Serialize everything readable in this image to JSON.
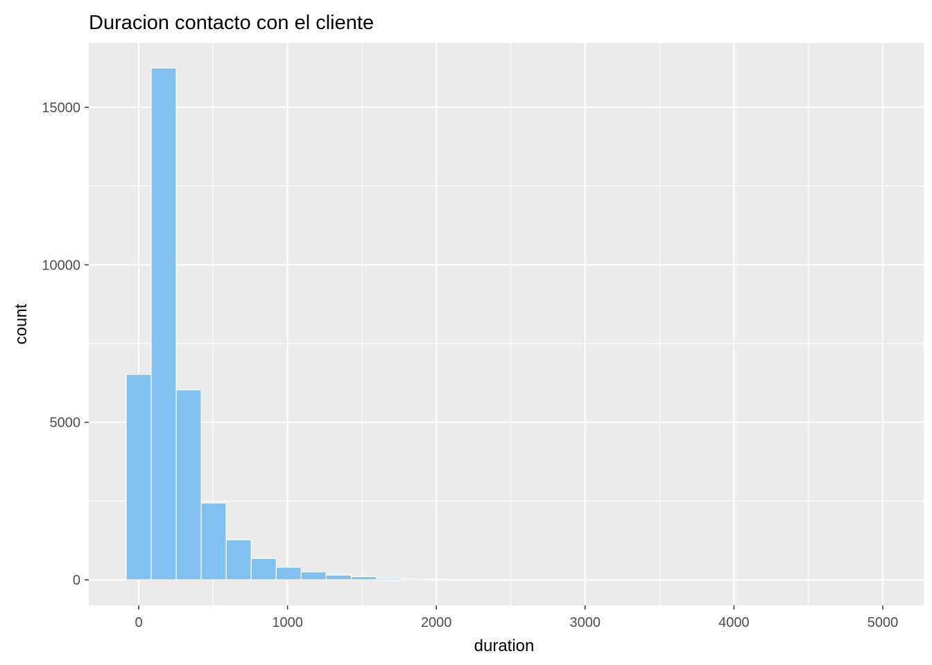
{
  "chart_data": {
    "type": "bar",
    "title": "Duracion contacto con el cliente",
    "xlabel": "duration",
    "ylabel": "count",
    "xlim": [
      -90,
      5000
    ],
    "ylim": [
      0,
      16300
    ],
    "x_ticks": [
      0,
      1000,
      2000,
      3000,
      4000,
      5000
    ],
    "y_ticks": [
      0,
      5000,
      10000,
      15000
    ],
    "bin_width": 168,
    "bin_starts": [
      -84,
      84,
      252,
      420,
      588,
      756,
      924,
      1092,
      1260,
      1428,
      1596,
      1764,
      1932,
      2100,
      2268,
      2436,
      2604,
      2772,
      2940,
      3108,
      3276,
      3444,
      3612,
      3780,
      3948,
      4116,
      4284,
      4452,
      4620,
      4788
    ],
    "values": [
      6520,
      16250,
      6030,
      2440,
      1270,
      680,
      400,
      250,
      150,
      100,
      45,
      30,
      18,
      12,
      9,
      7,
      5,
      4,
      4,
      3,
      2,
      2,
      1,
      1,
      2,
      1,
      1,
      1,
      1,
      2
    ],
    "grid": true,
    "colors": {
      "bar_fill": "#80c1ef",
      "bar_stroke": "#ffffff",
      "panel": "#ebebeb",
      "grid": "#ffffff",
      "tick_text": "#4d4d4d",
      "text": "#000000"
    }
  }
}
